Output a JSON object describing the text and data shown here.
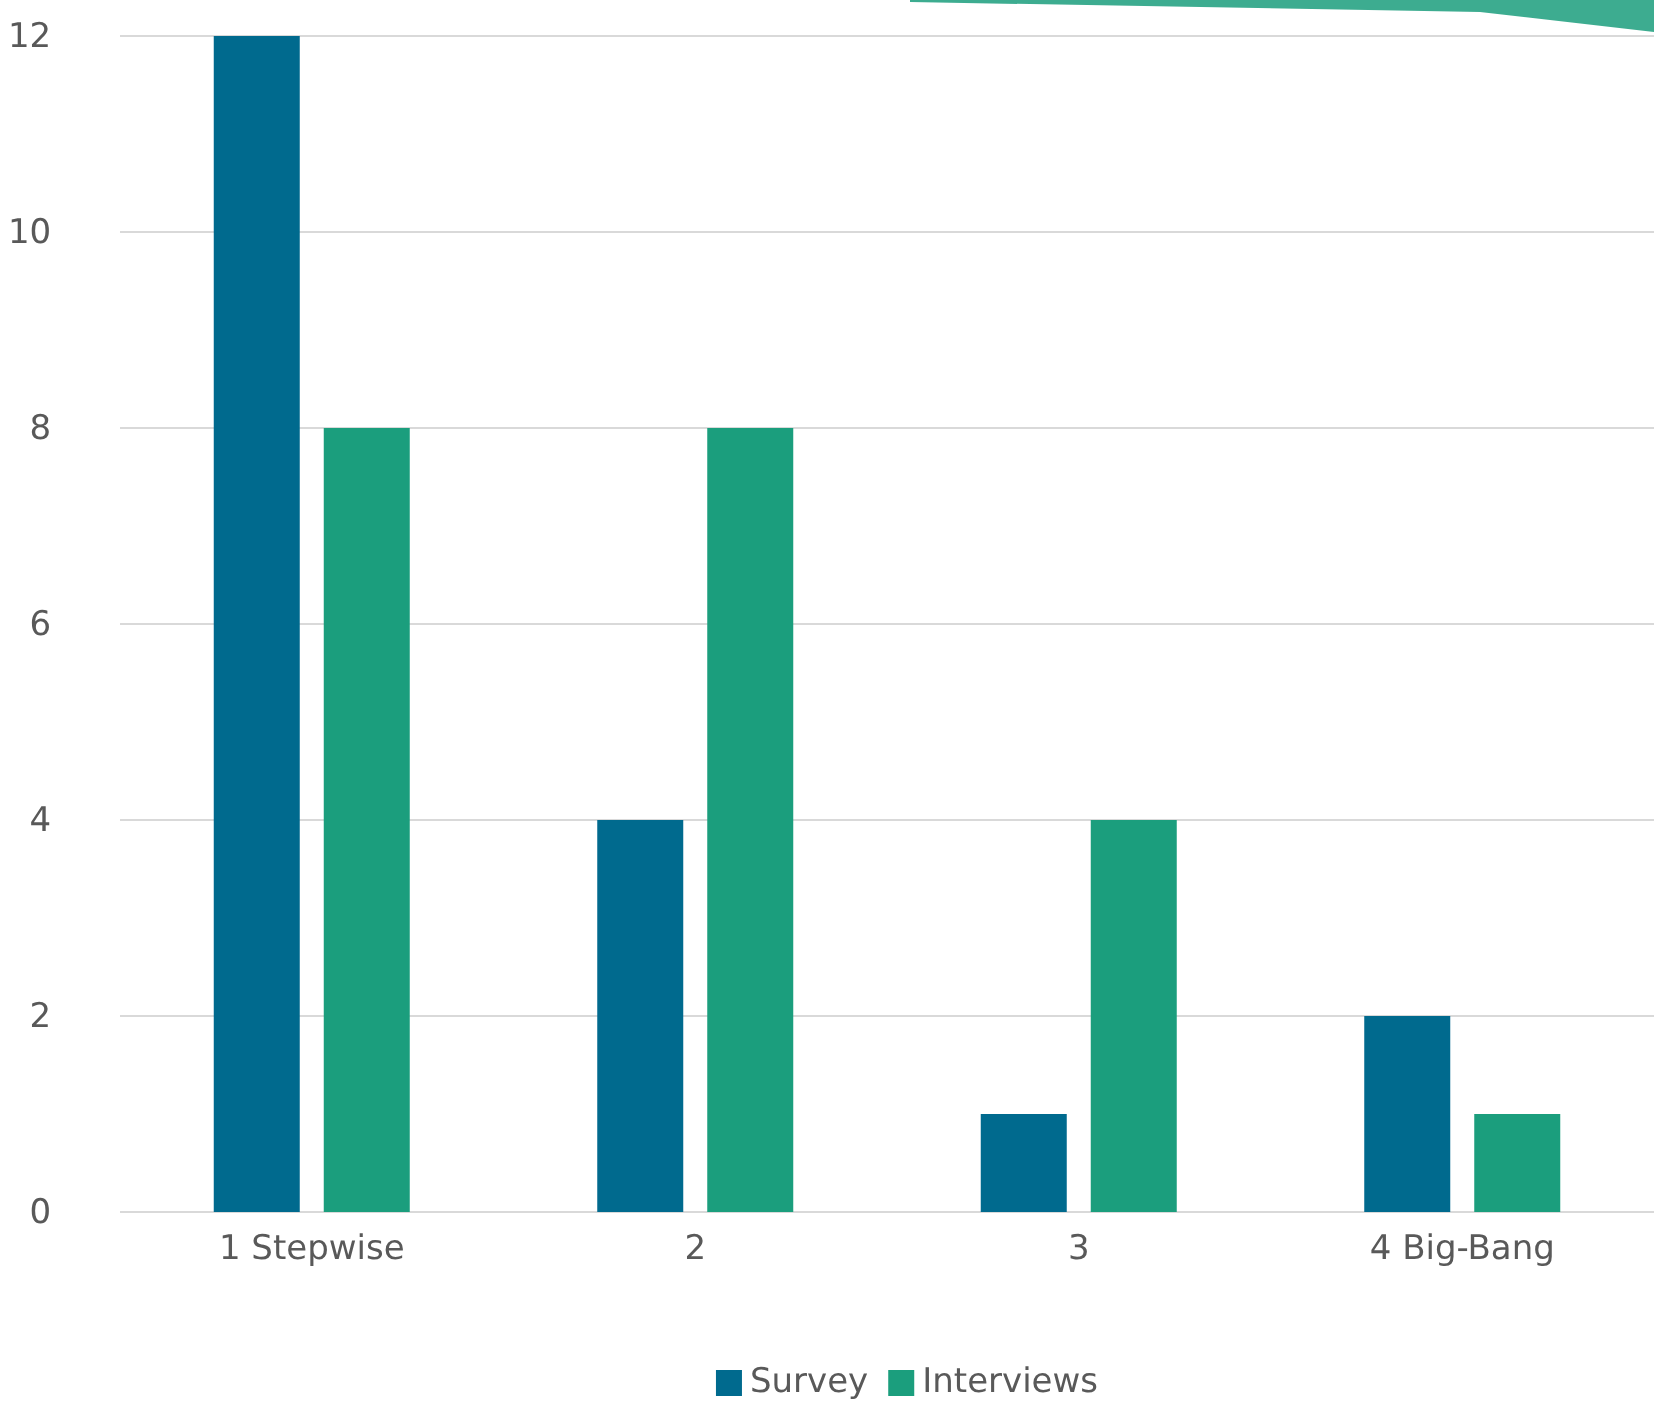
{
  "chart_data": {
    "type": "bar",
    "categories": [
      "1 Stepwise",
      "2",
      "3",
      "4 Big-Bang"
    ],
    "series": [
      {
        "name": "Survey",
        "color": "#006a8e",
        "values": [
          12,
          4,
          1,
          2
        ]
      },
      {
        "name": "Interviews",
        "color": "#1b9e7d",
        "values": [
          8,
          8,
          4,
          1
        ]
      }
    ],
    "ylim": [
      0,
      12
    ],
    "yticks": [
      0,
      2,
      4,
      6,
      8,
      10,
      12
    ],
    "grid": "y",
    "legend": "bottom"
  }
}
